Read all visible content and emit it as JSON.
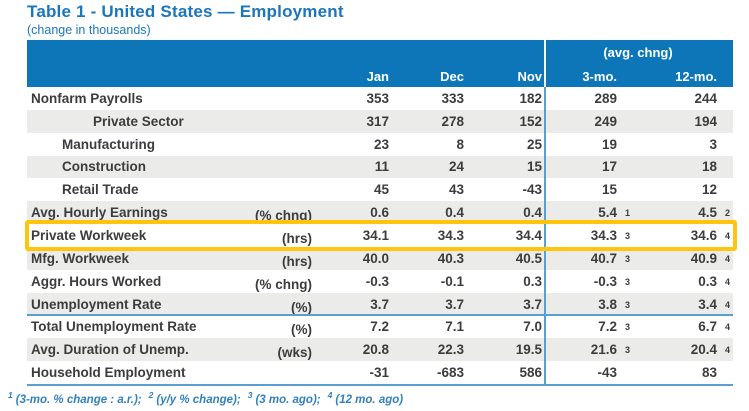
{
  "title": "Table 1 - United States — Employment",
  "subtitle": "(change in thousands)",
  "colors": {
    "accent_blue": "#0d76b8",
    "title_blue": "#1b76bd",
    "highlight_yellow": "#ffc40d",
    "stripe_gray": "#ebebe9",
    "line_blue": "#5b9fd0",
    "footnote_blue": "#3181bf",
    "text": "#3c3c3c"
  },
  "table": {
    "header": {
      "group_label": "(avg. chng)",
      "columns": [
        "Jan",
        "Dec",
        "Nov",
        "3-mo.",
        "12-mo."
      ]
    },
    "rows": [
      {
        "label": "Nonfarm Payrolls",
        "unit": "",
        "indent": 0,
        "values": [
          {
            "v": "353"
          },
          {
            "v": "333"
          },
          {
            "v": "182"
          },
          {
            "v": "289"
          },
          {
            "v": "244"
          }
        ]
      },
      {
        "label": "Private Sector",
        "unit": "",
        "indent": 2,
        "values": [
          {
            "v": "317"
          },
          {
            "v": "278"
          },
          {
            "v": "152"
          },
          {
            "v": "249"
          },
          {
            "v": "194"
          }
        ]
      },
      {
        "label": "Manufacturing",
        "unit": "",
        "indent": 1,
        "values": [
          {
            "v": "23"
          },
          {
            "v": "8"
          },
          {
            "v": "25"
          },
          {
            "v": "19"
          },
          {
            "v": "3"
          }
        ]
      },
      {
        "label": "Construction",
        "unit": "",
        "indent": 1,
        "values": [
          {
            "v": "11"
          },
          {
            "v": "24"
          },
          {
            "v": "15"
          },
          {
            "v": "17"
          },
          {
            "v": "18"
          }
        ]
      },
      {
        "label": "Retail Trade",
        "unit": "",
        "indent": 1,
        "values": [
          {
            "v": "45"
          },
          {
            "v": "43"
          },
          {
            "v": "-43"
          },
          {
            "v": "15"
          },
          {
            "v": "12"
          }
        ]
      },
      {
        "label": "Avg. Hourly Earnings",
        "unit": "(% chng)",
        "indent": 0,
        "values": [
          {
            "v": "0.6"
          },
          {
            "v": "0.4"
          },
          {
            "v": "0.4"
          },
          {
            "v": "5.4",
            "s": "1"
          },
          {
            "v": "4.5",
            "s": "2"
          }
        ]
      },
      {
        "label": "Private Workweek",
        "unit": "(hrs)",
        "indent": 0,
        "highlight": true,
        "values": [
          {
            "v": "34.1"
          },
          {
            "v": "34.3"
          },
          {
            "v": "34.4"
          },
          {
            "v": "34.3",
            "s": "3"
          },
          {
            "v": "34.6",
            "s": "4"
          }
        ]
      },
      {
        "label": "Mfg. Workweek",
        "unit": "(hrs)",
        "indent": 0,
        "values": [
          {
            "v": "40.0"
          },
          {
            "v": "40.3"
          },
          {
            "v": "40.5"
          },
          {
            "v": "40.7",
            "s": "3"
          },
          {
            "v": "40.9",
            "s": "4"
          }
        ]
      },
      {
        "label": "Aggr. Hours Worked",
        "unit": "(% chng)",
        "indent": 0,
        "values": [
          {
            "v": "-0.3"
          },
          {
            "v": "-0.1"
          },
          {
            "v": "0.3"
          },
          {
            "v": "-0.3",
            "s": "3"
          },
          {
            "v": "0.3",
            "s": "4"
          }
        ]
      },
      {
        "label": "Unemployment Rate",
        "unit": "(%)",
        "indent": 0,
        "values": [
          {
            "v": "3.7"
          },
          {
            "v": "3.7"
          },
          {
            "v": "3.7"
          },
          {
            "v": "3.8",
            "s": "3"
          },
          {
            "v": "3.4",
            "s": "4"
          }
        ]
      },
      {
        "label": "Total Unemployment Rate",
        "unit": "(%)",
        "indent": 0,
        "separator_above": true,
        "values": [
          {
            "v": "7.2"
          },
          {
            "v": "7.1"
          },
          {
            "v": "7.0"
          },
          {
            "v": "7.2",
            "s": "3"
          },
          {
            "v": "6.7",
            "s": "4"
          }
        ]
      },
      {
        "label": "Avg. Duration of Unemp.",
        "unit": "(wks)",
        "indent": 0,
        "values": [
          {
            "v": "20.8"
          },
          {
            "v": "22.3"
          },
          {
            "v": "19.5"
          },
          {
            "v": "21.6",
            "s": "3"
          },
          {
            "v": "20.4",
            "s": "4"
          }
        ]
      },
      {
        "label": "Household Employment",
        "unit": "",
        "indent": 0,
        "values": [
          {
            "v": "-31"
          },
          {
            "v": "-683"
          },
          {
            "v": "586"
          },
          {
            "v": "-43"
          },
          {
            "v": "83"
          }
        ]
      }
    ],
    "footnote_segments": [
      {
        "sup": "1",
        "text": "(3-mo. % change : a.r.);"
      },
      {
        "sup": "2",
        "text": "(y/y % change);"
      },
      {
        "sup": "3",
        "text": "(3 mo. ago);"
      },
      {
        "sup": "4",
        "text": "(12 mo. ago)"
      }
    ]
  }
}
